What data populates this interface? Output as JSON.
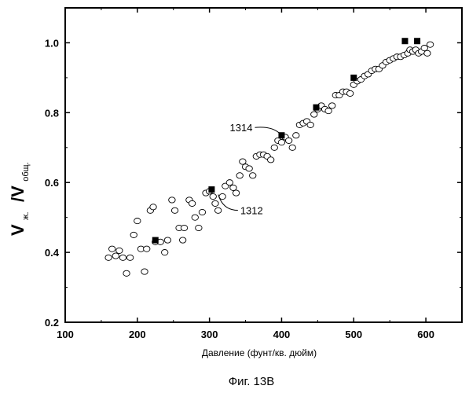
{
  "chart_data": {
    "type": "scatter",
    "caption": "Фиг. 13B",
    "xlabel": "Давление (фунт/кв. дюйм)",
    "ylabel": {
      "main1": "V",
      "sub1": "ж.",
      "main2": "/V",
      "sub2": "общ."
    },
    "xlim": [
      100,
      650
    ],
    "ylim": [
      0.2,
      1.1
    ],
    "x_ticks": [
      100,
      200,
      300,
      400,
      500,
      600
    ],
    "y_ticks": [
      0.2,
      0.4,
      0.6,
      0.8,
      1.0
    ],
    "x_tick_labels": [
      "100",
      "200",
      "300",
      "400",
      "500",
      "600"
    ],
    "y_tick_labels": [
      "0.2",
      "0.4",
      "0.6",
      "0.8",
      "1.0"
    ],
    "annotations": [
      {
        "text": "1314",
        "target": [
          400,
          0.735
        ]
      },
      {
        "text": "1312",
        "target": [
          310,
          0.57
        ]
      }
    ],
    "series": [
      {
        "marker": "circle-open",
        "points": [
          [
            160,
            0.385
          ],
          [
            165,
            0.41
          ],
          [
            170,
            0.39
          ],
          [
            175,
            0.405
          ],
          [
            180,
            0.385
          ],
          [
            185,
            0.34
          ],
          [
            190,
            0.385
          ],
          [
            195,
            0.45
          ],
          [
            200,
            0.49
          ],
          [
            205,
            0.41
          ],
          [
            210,
            0.345
          ],
          [
            213,
            0.41
          ],
          [
            218,
            0.52
          ],
          [
            222,
            0.53
          ],
          [
            225,
            0.43
          ],
          [
            232,
            0.43
          ],
          [
            238,
            0.4
          ],
          [
            242,
            0.435
          ],
          [
            248,
            0.55
          ],
          [
            252,
            0.52
          ],
          [
            258,
            0.47
          ],
          [
            263,
            0.435
          ],
          [
            265,
            0.47
          ],
          [
            272,
            0.55
          ],
          [
            276,
            0.54
          ],
          [
            280,
            0.5
          ],
          [
            285,
            0.47
          ],
          [
            290,
            0.515
          ],
          [
            295,
            0.57
          ],
          [
            300,
            0.575
          ],
          [
            305,
            0.56
          ],
          [
            308,
            0.54
          ],
          [
            312,
            0.52
          ],
          [
            318,
            0.56
          ],
          [
            322,
            0.59
          ],
          [
            328,
            0.6
          ],
          [
            333,
            0.585
          ],
          [
            337,
            0.57
          ],
          [
            342,
            0.62
          ],
          [
            346,
            0.66
          ],
          [
            350,
            0.645
          ],
          [
            355,
            0.64
          ],
          [
            360,
            0.62
          ],
          [
            365,
            0.675
          ],
          [
            370,
            0.68
          ],
          [
            375,
            0.68
          ],
          [
            380,
            0.675
          ],
          [
            385,
            0.665
          ],
          [
            390,
            0.7
          ],
          [
            395,
            0.72
          ],
          [
            400,
            0.715
          ],
          [
            405,
            0.73
          ],
          [
            410,
            0.72
          ],
          [
            415,
            0.7
          ],
          [
            420,
            0.735
          ],
          [
            425,
            0.765
          ],
          [
            430,
            0.77
          ],
          [
            435,
            0.775
          ],
          [
            440,
            0.765
          ],
          [
            445,
            0.795
          ],
          [
            450,
            0.81
          ],
          [
            455,
            0.82
          ],
          [
            460,
            0.81
          ],
          [
            465,
            0.805
          ],
          [
            470,
            0.82
          ],
          [
            475,
            0.85
          ],
          [
            480,
            0.85
          ],
          [
            485,
            0.86
          ],
          [
            490,
            0.86
          ],
          [
            495,
            0.855
          ],
          [
            500,
            0.88
          ],
          [
            505,
            0.89
          ],
          [
            510,
            0.895
          ],
          [
            515,
            0.905
          ],
          [
            520,
            0.91
          ],
          [
            525,
            0.92
          ],
          [
            530,
            0.925
          ],
          [
            535,
            0.925
          ],
          [
            540,
            0.935
          ],
          [
            545,
            0.945
          ],
          [
            550,
            0.95
          ],
          [
            555,
            0.955
          ],
          [
            560,
            0.96
          ],
          [
            565,
            0.96
          ],
          [
            570,
            0.965
          ],
          [
            575,
            0.97
          ],
          [
            578,
            0.98
          ],
          [
            582,
            0.975
          ],
          [
            586,
            0.98
          ],
          [
            590,
            0.97
          ],
          [
            594,
            0.975
          ],
          [
            598,
            0.985
          ],
          [
            602,
            0.97
          ],
          [
            606,
            0.995
          ]
        ]
      },
      {
        "marker": "square-filled",
        "points": [
          [
            225,
            0.435
          ],
          [
            303,
            0.58
          ],
          [
            400,
            0.735
          ],
          [
            448,
            0.815
          ],
          [
            500,
            0.9
          ],
          [
            571,
            1.005
          ],
          [
            588,
            1.005
          ]
        ]
      }
    ]
  }
}
